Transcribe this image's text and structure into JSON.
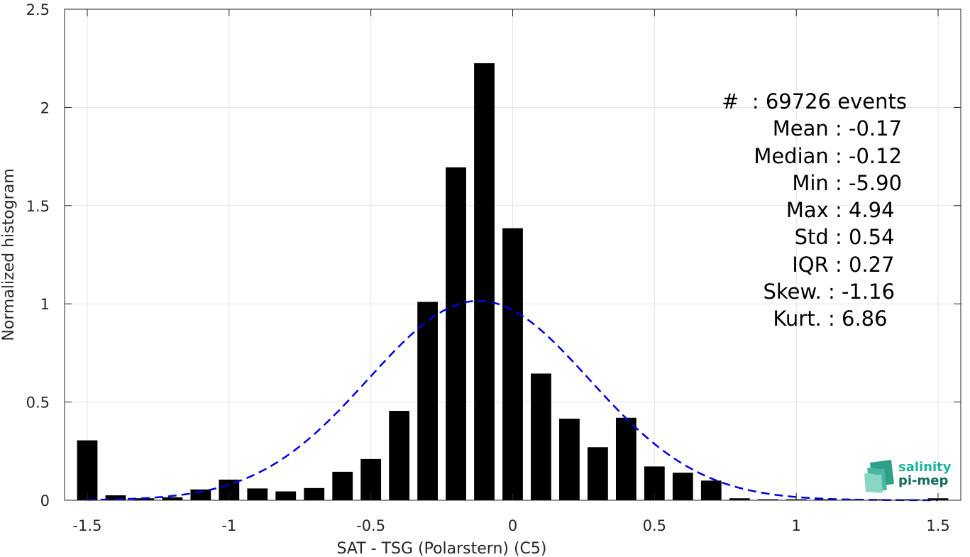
{
  "chart_data": {
    "type": "bar",
    "xlabel": "SAT - TSG (Polarstern) (C5)",
    "ylabel": "Normalized histogram",
    "xlim": [
      -1.58,
      1.58
    ],
    "ylim": [
      0,
      2.5
    ],
    "grid": true,
    "x_ticks": [
      -1.5,
      -1,
      -0.5,
      0,
      0.5,
      1,
      1.5
    ],
    "x_tick_labels": [
      "-1.5",
      "-1",
      "-0.5",
      "0",
      "0.5",
      "1",
      "1.5"
    ],
    "y_ticks": [
      0,
      0.5,
      1,
      1.5,
      2,
      2.5
    ],
    "y_tick_labels": [
      "0",
      "0.5",
      "1",
      "1.5",
      "2",
      "2.5"
    ],
    "bin_width": 0.1,
    "bar_color": "#000000",
    "x": [
      -1.5,
      -1.4,
      -1.3,
      -1.2,
      -1.1,
      -1.0,
      -0.9,
      -0.8,
      -0.7,
      -0.6,
      -0.5,
      -0.4,
      -0.3,
      -0.2,
      -0.1,
      0.0,
      0.1,
      0.2,
      0.3,
      0.4,
      0.5,
      0.6,
      0.7,
      0.8,
      0.9,
      1.0,
      1.1,
      1.2,
      1.3,
      1.4,
      1.5
    ],
    "values": [
      0.305,
      0.025,
      0.01,
      0.015,
      0.055,
      0.105,
      0.06,
      0.045,
      0.062,
      0.145,
      0.21,
      0.455,
      1.01,
      1.695,
      2.225,
      1.385,
      0.645,
      0.415,
      0.27,
      0.42,
      0.172,
      0.14,
      0.1,
      0.01,
      0.005,
      0.005,
      0.005,
      0.005,
      0.005,
      0.005,
      0.01
    ],
    "fit": {
      "type": "gaussian",
      "mean": -0.12,
      "std": 0.39,
      "peak": 1.015,
      "color": "#0000e0",
      "style": "dashed"
    }
  },
  "stats": {
    "events": "#  : 69726 events",
    "lines": [
      {
        "label": "Mean : ",
        "value": "-0.17"
      },
      {
        "label": "Median : ",
        "value": "-0.12"
      },
      {
        "label": "Min : ",
        "value": "-5.90"
      },
      {
        "label": "Max : ",
        "value": "4.94"
      },
      {
        "label": "Std : ",
        "value": "0.54"
      },
      {
        "label": "IQR : ",
        "value": "0.27"
      },
      {
        "label": "Skew. : ",
        "value": "-1.16"
      },
      {
        "label": "Kurt. : ",
        "value": "6.86"
      }
    ]
  },
  "logo": {
    "line1": "salinity",
    "line2": "pi-mep",
    "color1": "#19b39b",
    "color2": "#0f6b5f"
  }
}
